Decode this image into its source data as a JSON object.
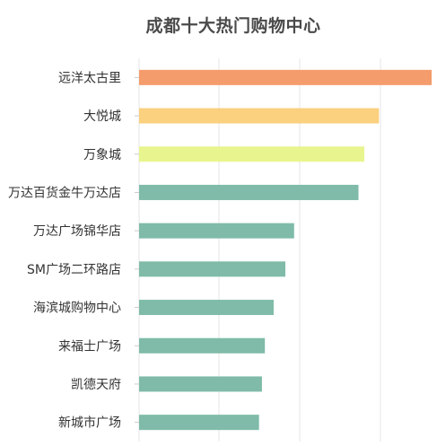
{
  "chart_data": {
    "type": "bar",
    "orientation": "horizontal",
    "title": "成都十大热门购物中心",
    "categories": [
      "远洋太古里",
      "大悦城",
      "万象城",
      "万达百货金牛万达店",
      "万达广场锦华店",
      "SM广场二环路店",
      "海滨城购物中心",
      "来福士广场",
      "凯德天府",
      "新城市广场"
    ],
    "values": [
      100,
      82,
      77,
      75,
      53,
      50,
      46,
      43,
      42,
      41
    ],
    "colors": [
      "#f49c6c",
      "#fbd07e",
      "#e8f58e",
      "#7fbba8",
      "#7fbba8",
      "#7fbba8",
      "#7fbba8",
      "#7fbba8",
      "#7fbba8",
      "#7fbba8"
    ],
    "xlim": [
      0,
      100
    ],
    "grid": true,
    "legend": "none",
    "gridline_color": "#e6e6e6",
    "label_color": "#333333"
  }
}
